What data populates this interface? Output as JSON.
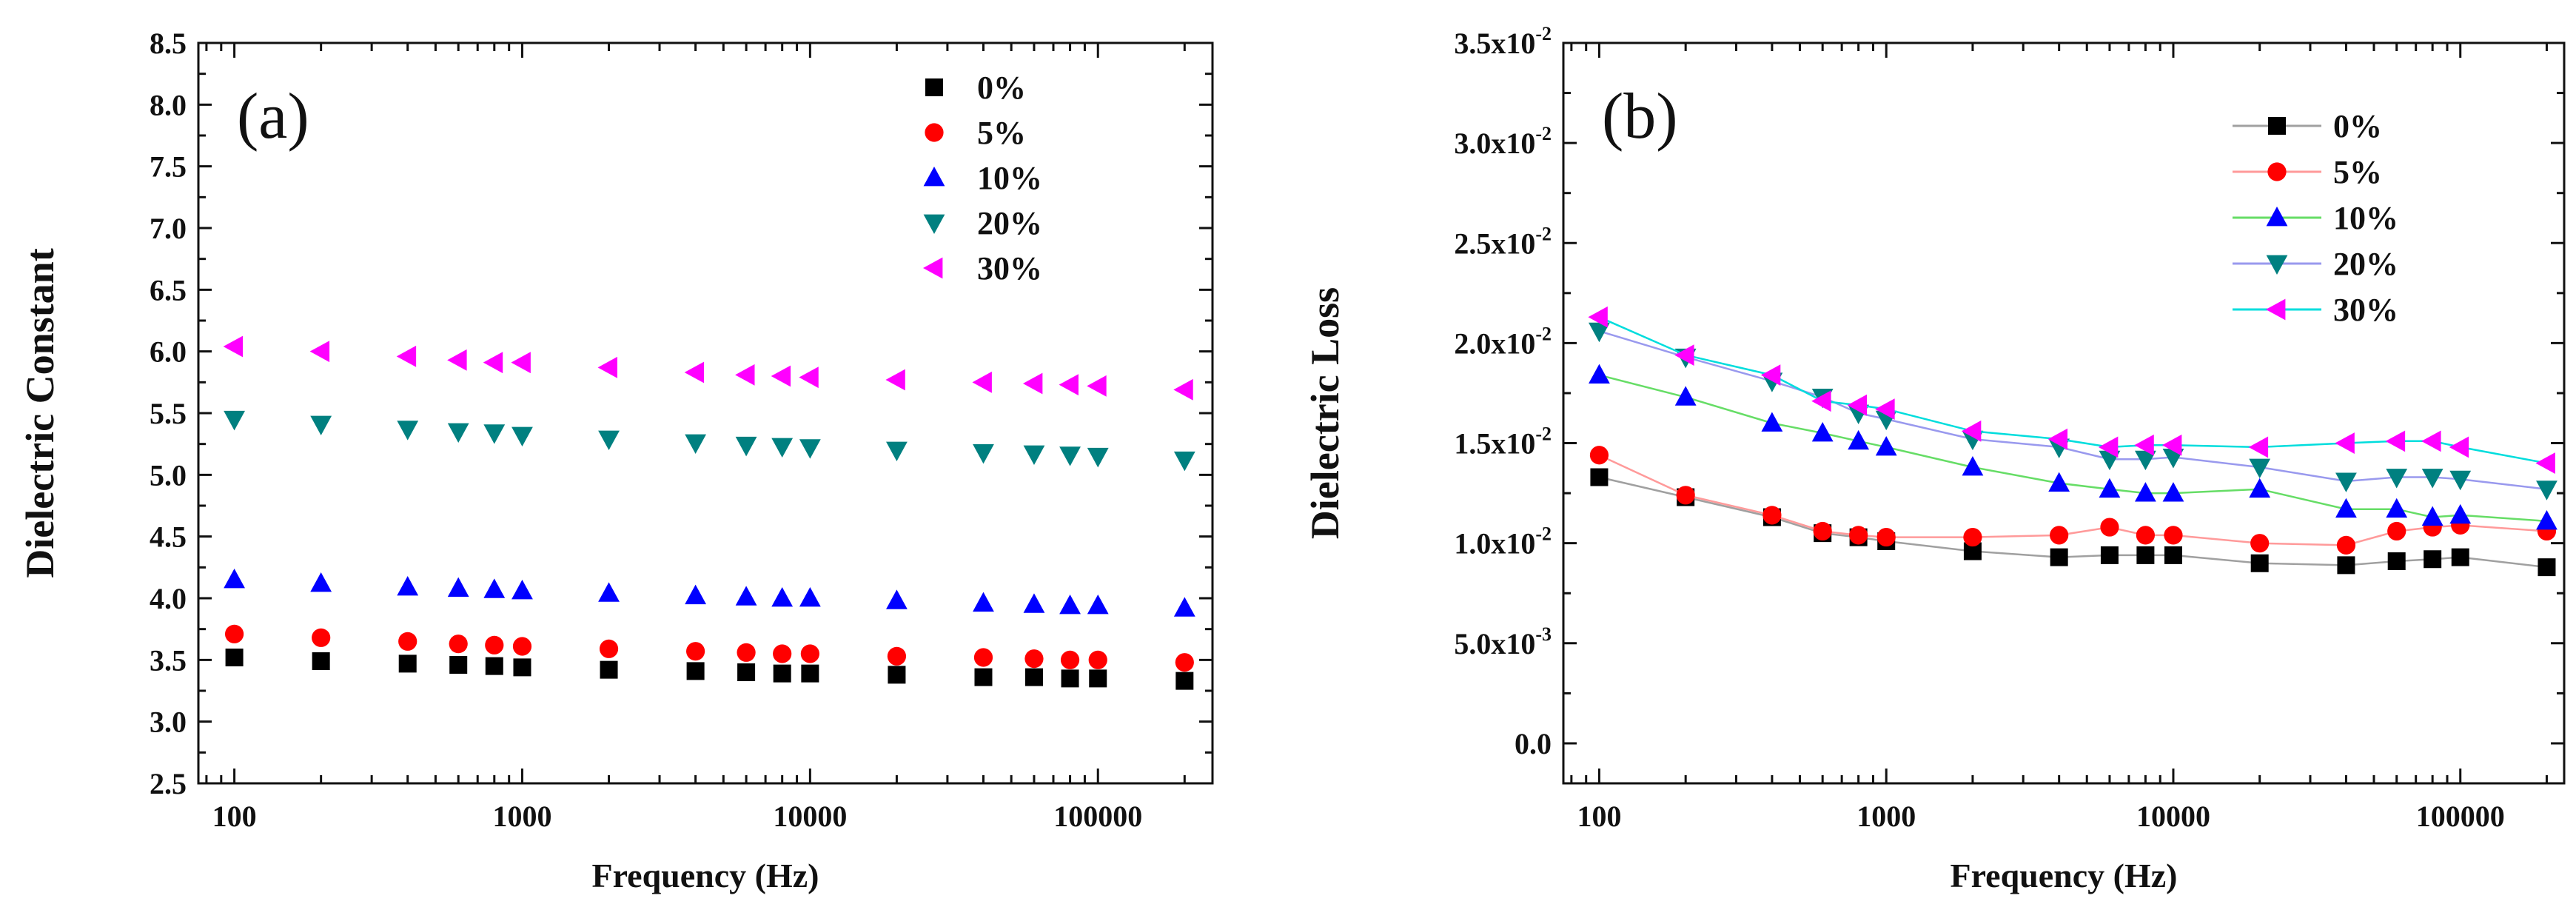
{
  "chart_data": [
    {
      "type": "scatter",
      "panel_label": "(a)",
      "xlabel": "Frequency (Hz)",
      "ylabel": "Dielectric Constant",
      "xscale": "log",
      "xlim": [
        75,
        250000
      ],
      "ylim": [
        2.5,
        8.5
      ],
      "x_ticks": [
        100,
        1000,
        10000,
        100000
      ],
      "x_tick_labels": [
        "100",
        "1000",
        "10000",
        "100000"
      ],
      "y_ticks": [
        2.5,
        3.0,
        3.5,
        4.0,
        4.5,
        5.0,
        5.5,
        6.0,
        6.5,
        7.0,
        7.5,
        8.0,
        8.5
      ],
      "y_tick_labels": [
        "2.5",
        "3.0",
        "3.5",
        "4.0",
        "4.5",
        "5.0",
        "5.5",
        "6.0",
        "6.5",
        "7.0",
        "7.5",
        "8.0",
        "8.5"
      ],
      "legend_position": "top-right",
      "x": [
        100,
        200,
        400,
        600,
        800,
        1000,
        2000,
        4000,
        6000,
        8000,
        10000,
        20000,
        40000,
        60000,
        80000,
        100000,
        200000
      ],
      "series": [
        {
          "name": "0%",
          "marker": "square",
          "color": "#000000",
          "line": false,
          "values": [
            3.52,
            3.49,
            3.47,
            3.46,
            3.45,
            3.44,
            3.42,
            3.41,
            3.4,
            3.39,
            3.39,
            3.38,
            3.36,
            3.36,
            3.35,
            3.35,
            3.33
          ]
        },
        {
          "name": "5%",
          "marker": "circle",
          "color": "#ff0000",
          "line": false,
          "values": [
            3.71,
            3.68,
            3.65,
            3.63,
            3.62,
            3.61,
            3.59,
            3.57,
            3.56,
            3.55,
            3.55,
            3.53,
            3.52,
            3.51,
            3.5,
            3.5,
            3.48
          ]
        },
        {
          "name": "10%",
          "marker": "triangle-up",
          "color": "#0000ff",
          "line": false,
          "values": [
            4.15,
            4.12,
            4.09,
            4.08,
            4.07,
            4.06,
            4.04,
            4.02,
            4.01,
            4.0,
            4.0,
            3.98,
            3.96,
            3.95,
            3.94,
            3.94,
            3.92
          ]
        },
        {
          "name": "20%",
          "marker": "triangle-down",
          "color": "#008080",
          "line": false,
          "values": [
            5.45,
            5.41,
            5.37,
            5.35,
            5.34,
            5.32,
            5.29,
            5.26,
            5.24,
            5.23,
            5.22,
            5.2,
            5.18,
            5.17,
            5.16,
            5.15,
            5.12
          ]
        },
        {
          "name": "30%",
          "marker": "triangle-left",
          "color": "#ff00ff",
          "line": false,
          "values": [
            6.04,
            6.0,
            5.96,
            5.93,
            5.91,
            5.91,
            5.87,
            5.83,
            5.81,
            5.8,
            5.79,
            5.77,
            5.75,
            5.74,
            5.73,
            5.72,
            5.69
          ]
        }
      ]
    },
    {
      "type": "line",
      "panel_label": "(b)",
      "xlabel": "Frequency (Hz)",
      "ylabel": "Dielectric Loss",
      "xscale": "log",
      "xlim": [
        75,
        230000
      ],
      "ylim": [
        -0.002,
        0.035
      ],
      "x_ticks": [
        100,
        1000,
        10000,
        100000
      ],
      "x_tick_labels": [
        "100",
        "1000",
        "10000",
        "100000"
      ],
      "y_ticks": [
        0.0,
        0.005,
        0.01,
        0.015,
        0.02,
        0.025,
        0.03,
        0.035
      ],
      "y_tick_labels": [
        {
          "mantissa": "0.0",
          "exponent": ""
        },
        {
          "mantissa": "5.0x10",
          "exponent": "-3"
        },
        {
          "mantissa": "1.0x10",
          "exponent": "-2"
        },
        {
          "mantissa": "1.5x10",
          "exponent": "-2"
        },
        {
          "mantissa": "2.0x10",
          "exponent": "-2"
        },
        {
          "mantissa": "2.5x10",
          "exponent": "-2"
        },
        {
          "mantissa": "3.0x10",
          "exponent": "-2"
        },
        {
          "mantissa": "3.5x10",
          "exponent": "-2"
        }
      ],
      "legend_position": "top-center",
      "x": [
        100,
        200,
        400,
        600,
        800,
        1000,
        2000,
        4000,
        6000,
        8000,
        10000,
        20000,
        40000,
        60000,
        80000,
        100000,
        200000
      ],
      "series": [
        {
          "name": "0%",
          "marker": "square",
          "color": "#000000",
          "line_color": "#a0a0a0",
          "line": true,
          "values": [
            0.0133,
            0.0123,
            0.0113,
            0.0105,
            0.0103,
            0.0101,
            0.0096,
            0.0093,
            0.0094,
            0.0094,
            0.0094,
            0.009,
            0.0089,
            0.0091,
            0.0092,
            0.0093,
            0.0088
          ]
        },
        {
          "name": "5%",
          "marker": "circle",
          "color": "#ff0000",
          "line_color": "#ff9a9a",
          "line": true,
          "values": [
            0.0144,
            0.0124,
            0.0114,
            0.0106,
            0.0104,
            0.0103,
            0.0103,
            0.0104,
            0.0108,
            0.0104,
            0.0104,
            0.01,
            0.0099,
            0.0106,
            0.0108,
            0.0109,
            0.0106
          ]
        },
        {
          "name": "10%",
          "marker": "triangle-up",
          "color": "#0000ff",
          "line_color": "#66dd66",
          "line": true,
          "values": [
            0.0184,
            0.0173,
            0.016,
            0.0155,
            0.0151,
            0.0148,
            0.0138,
            0.013,
            0.0127,
            0.0125,
            0.0125,
            0.0127,
            0.0117,
            0.0117,
            0.0113,
            0.0114,
            0.0111
          ]
        },
        {
          "name": "20%",
          "marker": "triangle-down",
          "color": "#008080",
          "line_color": "#9999ee",
          "line": true,
          "values": [
            0.0206,
            0.0193,
            0.0181,
            0.0173,
            0.0165,
            0.0162,
            0.0152,
            0.0148,
            0.0142,
            0.0142,
            0.0143,
            0.0138,
            0.0131,
            0.0133,
            0.0133,
            0.0132,
            0.0127
          ]
        },
        {
          "name": "30%",
          "marker": "triangle-left",
          "color": "#ff00ff",
          "line_color": "#00dddd",
          "line": true,
          "values": [
            0.0213,
            0.0194,
            0.0184,
            0.0171,
            0.0169,
            0.0167,
            0.0156,
            0.0152,
            0.0148,
            0.0149,
            0.0149,
            0.0148,
            0.015,
            0.0151,
            0.0151,
            0.0148,
            0.014
          ]
        }
      ]
    }
  ]
}
